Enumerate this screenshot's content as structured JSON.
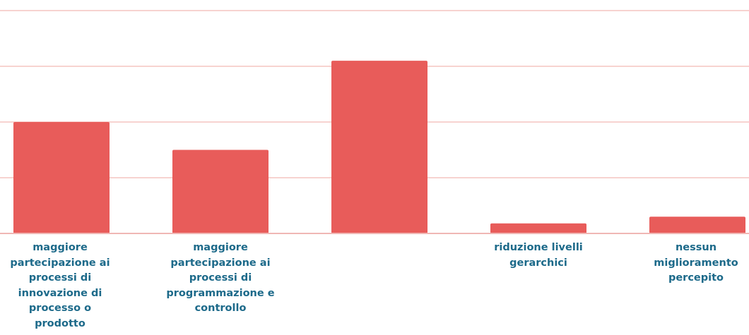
{
  "colors": {
    "bar": "#e85c5a",
    "gridline": "#f7d3d0",
    "baseline": "#f0b7b4",
    "label": "#1d6a8a"
  },
  "chart_data": {
    "type": "bar",
    "categories": [
      "maggiore partecipazione ai processi di innovazione di processo o prodotto",
      "maggiore partecipazione ai processi di programmazione e controllo",
      "",
      "riduzione livelli gerarchici",
      "nessun miglioramento percepito"
    ],
    "values": [
      2.0,
      1.5,
      3.1,
      0.18,
      0.3
    ],
    "ylim": [
      0,
      4
    ],
    "grid": true,
    "title": "",
    "xlabel": "",
    "ylabel": ""
  }
}
